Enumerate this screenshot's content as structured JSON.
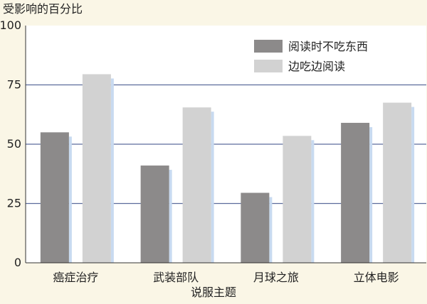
{
  "chart_data": {
    "type": "bar",
    "title": "",
    "ylabel": "受影响的百分比",
    "xlabel": "说服主题",
    "ylim": [
      0,
      100
    ],
    "yticks": [
      0,
      25,
      50,
      75,
      100
    ],
    "grid": true,
    "legend_position": "top-right",
    "categories": [
      "癌症治疗",
      "武装部队",
      "月球之旅",
      "立体电影"
    ],
    "series": [
      {
        "name": "阅读时不吃东西",
        "color": "#8c8a8a",
        "values": [
          55,
          41,
          29.5,
          59
        ]
      },
      {
        "name": "边吃边阅读",
        "color": "#d2d2d2",
        "values": [
          79.5,
          65.5,
          53.5,
          67.5
        ]
      }
    ]
  },
  "colors": {
    "background": "#faf6e6",
    "plot_background": "#ffffff",
    "gridline": "#5c6c9c",
    "bar_shadow": "#c8daf0"
  }
}
